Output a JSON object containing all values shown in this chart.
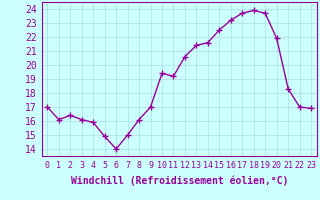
{
  "x": [
    0,
    1,
    2,
    3,
    4,
    5,
    6,
    7,
    8,
    9,
    10,
    11,
    12,
    13,
    14,
    15,
    16,
    17,
    18,
    19,
    20,
    21,
    22,
    23
  ],
  "y": [
    17.0,
    16.1,
    16.4,
    16.1,
    15.9,
    14.9,
    14.0,
    15.0,
    16.1,
    17.0,
    19.4,
    19.2,
    20.6,
    21.4,
    21.6,
    22.5,
    23.2,
    23.7,
    23.9,
    23.7,
    21.9,
    18.3,
    17.0,
    16.9
  ],
  "line_color": "#990099",
  "marker": "+",
  "marker_size": 4,
  "marker_lw": 1.0,
  "bg_color": "#ccffff",
  "grid_color": "#aadddd",
  "xlabel": "Windchill (Refroidissement éolien,°C)",
  "ylabel_ticks": [
    14,
    15,
    16,
    17,
    18,
    19,
    20,
    21,
    22,
    23,
    24
  ],
  "xlim": [
    -0.5,
    23.5
  ],
  "ylim": [
    13.5,
    24.5
  ],
  "xticks": [
    0,
    1,
    2,
    3,
    4,
    5,
    6,
    7,
    8,
    9,
    10,
    11,
    12,
    13,
    14,
    15,
    16,
    17,
    18,
    19,
    20,
    21,
    22,
    23
  ],
  "tick_color": "#990099",
  "label_color": "#990099",
  "xlabel_fontsize": 7,
  "ytick_fontsize": 7,
  "xtick_fontsize": 6,
  "line_width": 1.0
}
